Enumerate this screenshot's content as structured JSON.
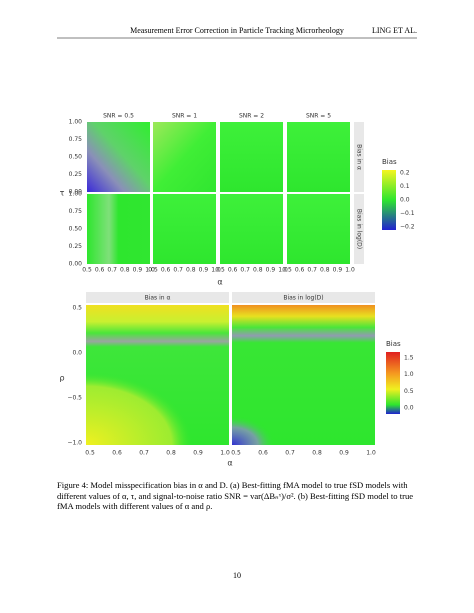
{
  "header": {
    "title": "Measurement Error Correction in Particle Tracking Microrheology",
    "authors": "LING ET AL."
  },
  "figure_a": {
    "facet_labels": [
      "SNR = 0.5",
      "SNR = 1",
      "SNR = 2",
      "SNR = 5"
    ],
    "row_labels": [
      "Bias in α",
      "Bias in log(D)"
    ],
    "y_label": "τ",
    "y_ticks": [
      "0.00",
      "0.25",
      "0.50",
      "0.75",
      "1.00"
    ],
    "x_label": "α",
    "x_ticks": [
      "0.5",
      "0.6",
      "0.7",
      "0.8",
      "0.9",
      "1.0"
    ],
    "legend_title": "Bias",
    "legend_ticks": [
      "0.2",
      "0.1",
      "0.0",
      "−0.1",
      "−0.2"
    ]
  },
  "figure_b": {
    "panel_titles": [
      "Bias in α",
      "Bias in log(D)"
    ],
    "y_label": "ρ",
    "y_ticks": [
      "0.5",
      "0.0",
      "−0.5",
      "−1.0"
    ],
    "x_label": "α",
    "x_ticks": [
      "0.5",
      "0.6",
      "0.7",
      "0.8",
      "0.9",
      "1.0"
    ],
    "legend_title": "Bias",
    "legend_ticks": [
      "1.5",
      "1.0",
      "0.5",
      "0.0"
    ]
  },
  "caption": "Figure 4: Model misspecification bias in α and D. (a) Best-fitting fMA model to true fSD models with different values of α, τ, and signal-to-noise ratio SNR = var(ΔBₙˣ)/σ². (b) Best-fitting fSD model to true fMA models with different values of α and ρ.",
  "page_number": "10"
}
